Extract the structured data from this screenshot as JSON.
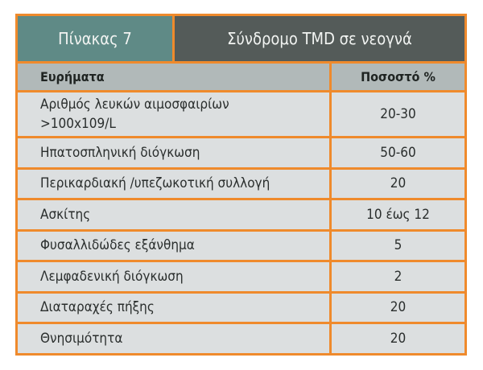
{
  "table": {
    "label": "Πίνακας 7",
    "title": "Σύνδρομο TMD σε νεογνά",
    "headers": [
      "Ευρήματα",
      "Ποσοστό %"
    ],
    "rows": [
      {
        "finding": "Αριθμός λευκών αιμοσφαιρίων",
        "finding_line2": ">100x109/L",
        "percent": "20-30"
      },
      {
        "finding": "Ηπατοσπληνική διόγκωση",
        "percent": "50-60"
      },
      {
        "finding": "Περικαρδιακή /υπεζωκοτική συλλογή",
        "percent": "20"
      },
      {
        "finding": "Ασκίτης",
        "percent": "10 έως 12"
      },
      {
        "finding": "Φυσαλλιδώδες εξάνθημα",
        "percent": "5"
      },
      {
        "finding": "Λεμφαδενική διόγκωση",
        "percent": "2"
      },
      {
        "finding": "Διαταραχές πήξης",
        "percent": "20"
      },
      {
        "finding": "Θνησιμότητα",
        "percent": "20"
      }
    ],
    "colors": {
      "border": "#ef8a2c",
      "label_bg": "#5f8a86",
      "title_bg": "#545b59",
      "header_bg": "#b1b9b9",
      "body_bg": "#dcdfe0"
    }
  }
}
